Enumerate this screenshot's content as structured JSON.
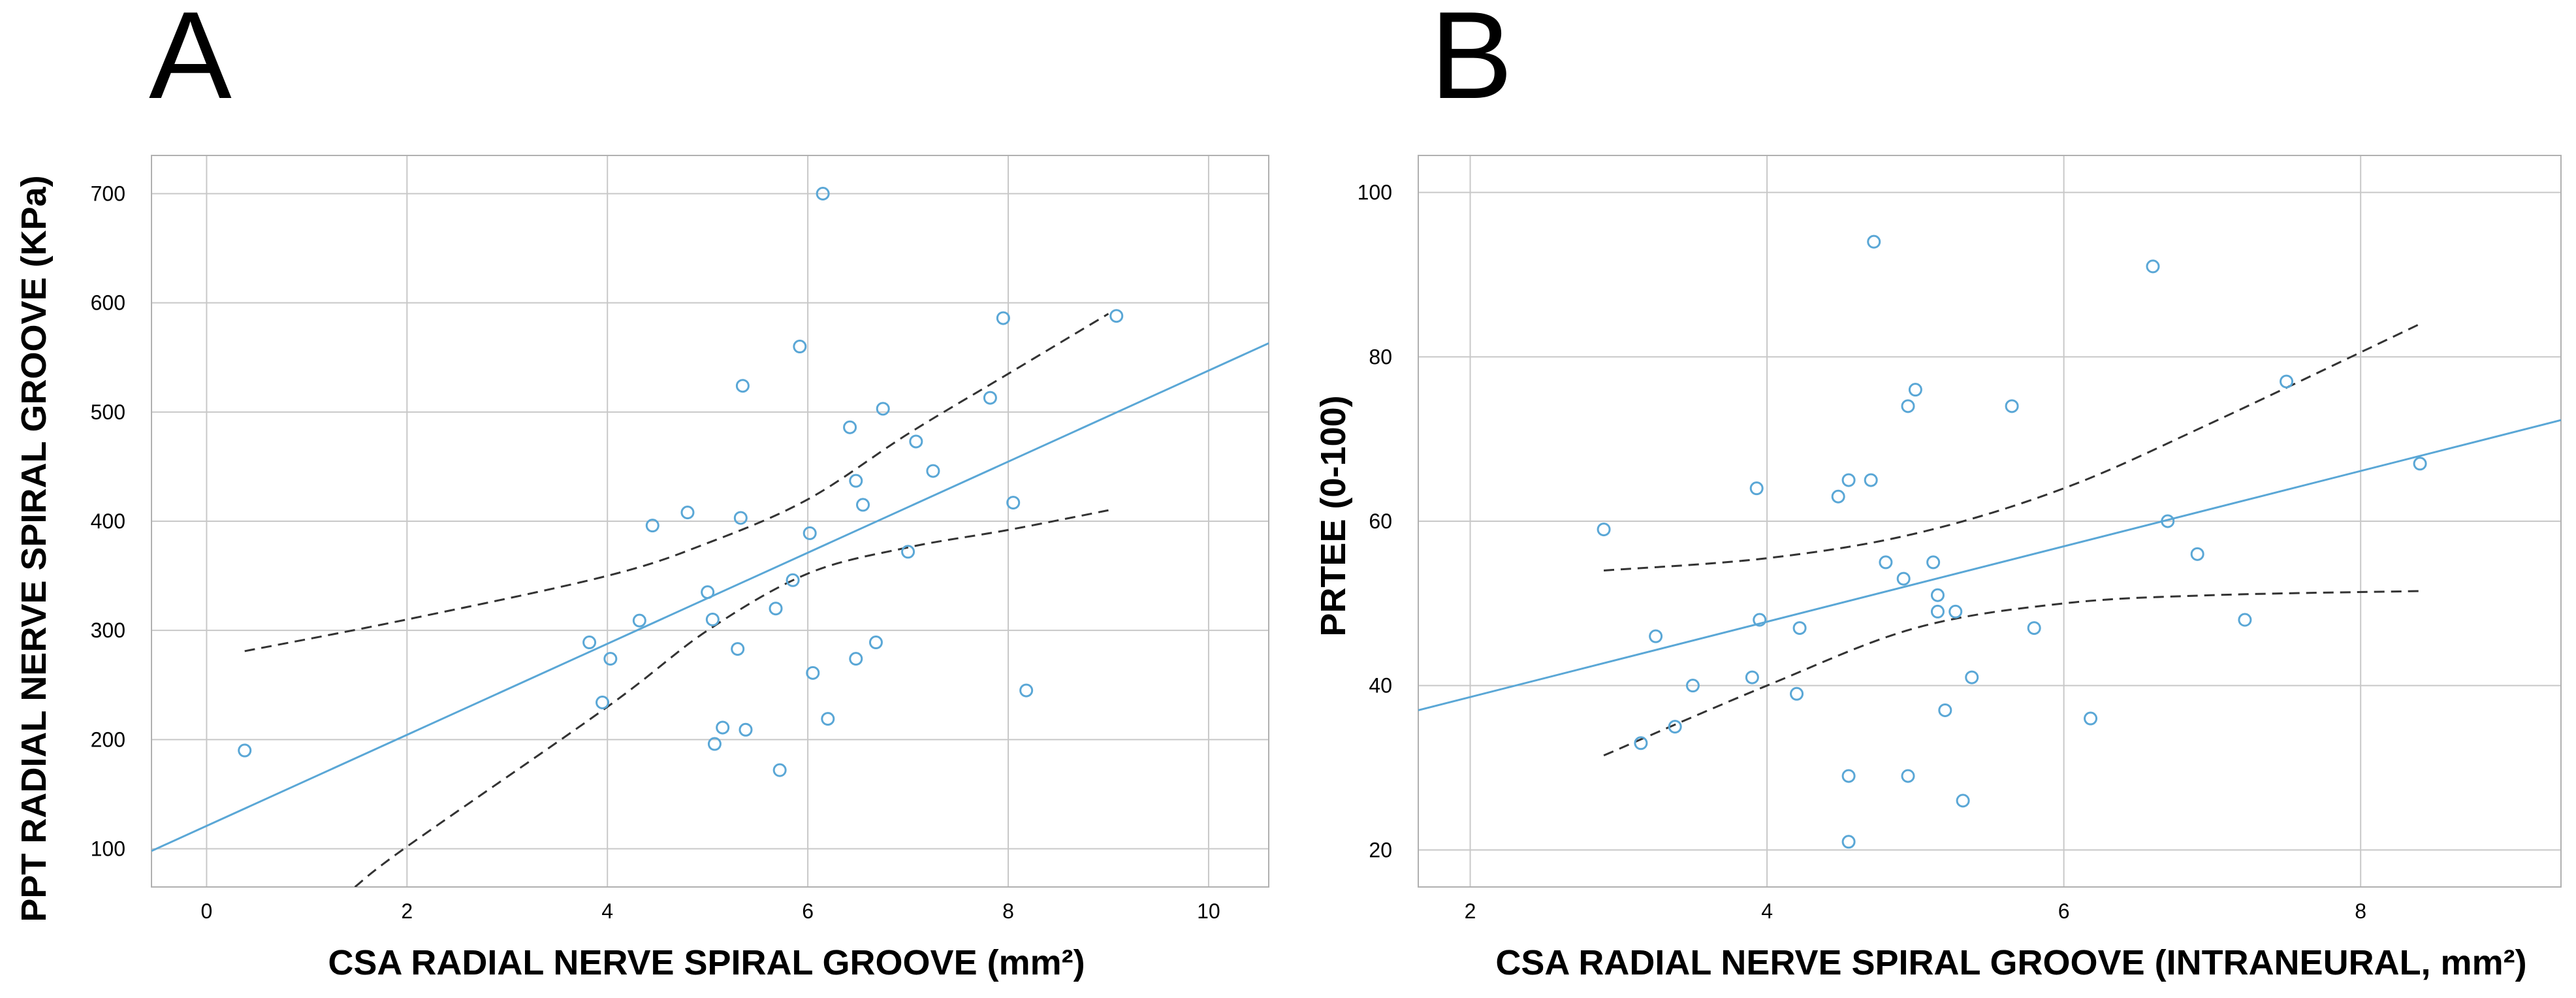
{
  "chart_data": [
    {
      "type": "scatter",
      "panel": "A",
      "xlabel": "CSA RADIAL NERVE SPIRAL GROOVE (mm²)",
      "ylabel": "PPT RADIAL NERVE SPIRAL GROOVE (KPa)",
      "xlim": [
        -0.55,
        10.6
      ],
      "ylim": [
        65,
        735
      ],
      "xticks": [
        0,
        2,
        4,
        6,
        8,
        10
      ],
      "yticks": [
        100,
        200,
        300,
        400,
        500,
        600,
        700
      ],
      "grid": true,
      "point_color": "#5aa7d6",
      "fit_color": "#5aa7d6",
      "ci_color": "#333333",
      "points": [
        [
          0.38,
          190
        ],
        [
          3.82,
          289
        ],
        [
          3.95,
          234
        ],
        [
          4.03,
          274
        ],
        [
          4.32,
          309
        ],
        [
          4.45,
          396
        ],
        [
          4.8,
          408
        ],
        [
          5.0,
          335
        ],
        [
          5.05,
          310
        ],
        [
          5.07,
          196
        ],
        [
          5.15,
          211
        ],
        [
          5.3,
          283
        ],
        [
          5.33,
          403
        ],
        [
          5.35,
          524
        ],
        [
          5.38,
          209
        ],
        [
          5.68,
          320
        ],
        [
          5.72,
          172
        ],
        [
          5.85,
          346
        ],
        [
          5.92,
          560
        ],
        [
          6.02,
          389
        ],
        [
          6.05,
          261
        ],
        [
          6.15,
          700
        ],
        [
          6.2,
          219
        ],
        [
          6.42,
          486
        ],
        [
          6.48,
          437
        ],
        [
          6.48,
          274
        ],
        [
          6.55,
          415
        ],
        [
          6.68,
          289
        ],
        [
          6.75,
          503
        ],
        [
          7.0,
          372
        ],
        [
          7.08,
          473
        ],
        [
          7.25,
          446
        ],
        [
          7.82,
          513
        ],
        [
          7.95,
          586
        ],
        [
          8.05,
          417
        ],
        [
          8.18,
          245
        ],
        [
          9.08,
          588
        ]
      ],
      "fit_line": [
        [
          -0.55,
          98
        ],
        [
          10.6,
          563
        ]
      ],
      "ci_upper": [
        [
          0.38,
          281
        ],
        [
          2,
          310
        ],
        [
          4,
          350
        ],
        [
          5,
          380
        ],
        [
          6,
          420
        ],
        [
          7,
          480
        ],
        [
          8,
          535
        ],
        [
          9.0,
          590
        ]
      ],
      "ci_lower": [
        [
          1.48,
          65
        ],
        [
          2,
          102
        ],
        [
          4,
          230
        ],
        [
          5,
          300
        ],
        [
          6,
          352
        ],
        [
          7,
          376
        ],
        [
          8,
          392
        ],
        [
          9.0,
          410
        ]
      ]
    },
    {
      "type": "scatter",
      "panel": "B",
      "xlabel": "CSA RADIAL NERVE SPIRAL GROOVE (INTRANEURAL, mm²)",
      "ylabel": "PRTEE (0-100)",
      "xlim": [
        1.65,
        9.35
      ],
      "ylim": [
        15.5,
        104.5
      ],
      "xticks": [
        2,
        4,
        6,
        8
      ],
      "yticks": [
        20,
        40,
        60,
        80,
        100
      ],
      "grid": true,
      "point_color": "#5aa7d6",
      "fit_color": "#5aa7d6",
      "ci_color": "#333333",
      "points": [
        [
          2.9,
          59
        ],
        [
          3.15,
          33
        ],
        [
          3.25,
          46
        ],
        [
          3.38,
          35
        ],
        [
          3.5,
          40
        ],
        [
          3.9,
          41
        ],
        [
          3.93,
          64
        ],
        [
          3.95,
          48
        ],
        [
          4.2,
          39
        ],
        [
          4.22,
          47
        ],
        [
          4.48,
          63
        ],
        [
          4.55,
          29
        ],
        [
          4.55,
          65
        ],
        [
          4.55,
          21
        ],
        [
          4.7,
          65
        ],
        [
          4.72,
          94
        ],
        [
          4.8,
          55
        ],
        [
          4.92,
          53
        ],
        [
          4.95,
          29
        ],
        [
          4.95,
          74
        ],
        [
          5.0,
          76
        ],
        [
          5.12,
          55
        ],
        [
          5.15,
          51
        ],
        [
          5.15,
          49
        ],
        [
          5.2,
          37
        ],
        [
          5.27,
          49
        ],
        [
          5.32,
          26
        ],
        [
          5.38,
          41
        ],
        [
          5.65,
          74
        ],
        [
          5.8,
          47
        ],
        [
          6.18,
          36
        ],
        [
          6.6,
          91
        ],
        [
          6.7,
          60
        ],
        [
          6.9,
          56
        ],
        [
          7.22,
          48
        ],
        [
          7.5,
          77
        ],
        [
          8.4,
          67
        ]
      ],
      "fit_line": [
        [
          1.65,
          37
        ],
        [
          9.35,
          72.3
        ]
      ],
      "ci_upper": [
        [
          2.9,
          54
        ],
        [
          4,
          55.5
        ],
        [
          5,
          58.5
        ],
        [
          6,
          64
        ],
        [
          7,
          72
        ],
        [
          8.4,
          84
        ]
      ],
      "ci_lower": [
        [
          2.9,
          31.5
        ],
        [
          4,
          40
        ],
        [
          5,
          47
        ],
        [
          6,
          50
        ],
        [
          7,
          51
        ],
        [
          8.4,
          51.5
        ]
      ]
    }
  ]
}
